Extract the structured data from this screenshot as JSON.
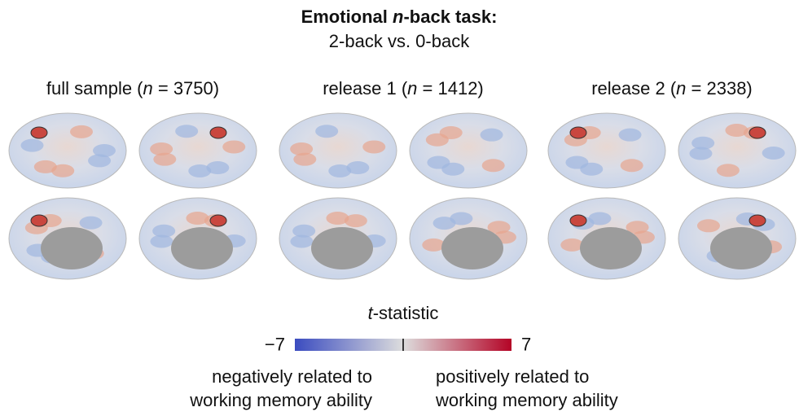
{
  "title": [
    "Emotional ",
    "n",
    "-back task:"
  ],
  "subtitle": "2-back vs. 0-back",
  "panels": [
    {
      "title": [
        "full sample (",
        "n",
        " = 3750)"
      ]
    },
    {
      "title": [
        "release 1 (",
        "n",
        " = 1412)"
      ]
    },
    {
      "title": [
        "release 2 (",
        "n",
        " = 2338)"
      ]
    }
  ],
  "colorbar": {
    "label": [
      "t",
      "-statistic"
    ],
    "min": -7,
    "max": 7,
    "ticks": [
      {
        "value": -7,
        "label": "−7"
      },
      7
    ],
    "low_color": "#3b4cc0",
    "mid_color": "#dddddd",
    "high_color": "#b40426"
  },
  "notes": {
    "negative": [
      "negatively related to",
      "working memory ability"
    ],
    "positive": [
      "positively related to",
      "working memory ability"
    ]
  }
}
